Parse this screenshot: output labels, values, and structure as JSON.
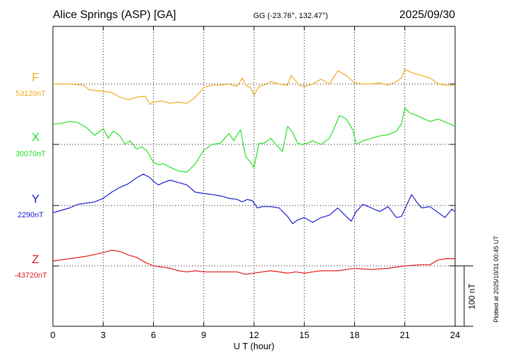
{
  "header": {
    "station": "Alice Springs (ASP)  [GA]",
    "coords": "GG (-23.76°, 132.47°)",
    "date": "2025/09/30"
  },
  "footer": {
    "plotted": "Plotted at 2025/10/31 00:45 UT",
    "scale_label": "100 nT"
  },
  "chart_data": {
    "type": "line",
    "title": "Alice Springs (ASP)  [GA]",
    "xlabel": "U T (hour)",
    "ylabel": "",
    "xlim": [
      0,
      24
    ],
    "x_ticks": [
      "0",
      "3",
      "6",
      "9",
      "12",
      "15",
      "18",
      "21",
      "24"
    ],
    "grid": true,
    "scale_bar_nT": 100,
    "series": [
      {
        "name": "F",
        "baseline_label": "53120nT",
        "color": "#f0a818",
        "x": [
          0,
          1,
          1.8,
          2.2,
          3,
          3.5,
          4,
          4.5,
          5,
          5.5,
          5.8,
          6,
          6.5,
          7,
          7.5,
          8,
          8.5,
          9,
          9.5,
          10,
          10.5,
          11,
          11.3,
          11.5,
          11.8,
          12,
          12.3,
          12.6,
          13,
          13.5,
          14,
          14.2,
          14.4,
          14.7,
          15,
          15.5,
          16,
          16.5,
          17,
          17.5,
          18,
          18.5,
          19,
          19.5,
          20,
          20.5,
          20.8,
          21,
          21.5,
          22,
          22.5,
          23,
          23.5,
          24
        ],
        "values": [
          0,
          0,
          -2,
          -10,
          -12,
          -14,
          -22,
          -26,
          -22,
          -20,
          -34,
          -30,
          -28,
          -32,
          -30,
          -32,
          -22,
          -6,
          -2,
          -2,
          0,
          -4,
          10,
          -2,
          -6,
          -18,
          -4,
          -2,
          4,
          0,
          -2,
          14,
          8,
          -2,
          -4,
          0,
          8,
          0,
          22,
          14,
          2,
          0,
          0,
          2,
          -2,
          4,
          10,
          24,
          18,
          14,
          10,
          0,
          -2,
          -2
        ]
      },
      {
        "name": "X",
        "baseline_label": "30070nT",
        "color": "#22e022",
        "x": [
          0,
          0.5,
          1,
          1.5,
          2,
          2.5,
          3,
          3.3,
          3.6,
          4,
          4.3,
          4.6,
          5,
          5.3,
          5.6,
          6,
          6.3,
          6.6,
          7,
          7.5,
          8,
          8.5,
          9,
          9.5,
          10,
          10.5,
          10.8,
          11,
          11.2,
          11.5,
          11.8,
          12,
          12.3,
          12.6,
          13,
          13.3,
          13.7,
          14,
          14.3,
          14.6,
          14.9,
          15.2,
          15.5,
          16,
          16.5,
          16.8,
          17.1,
          17.5,
          17.9,
          18.1,
          18.5,
          19,
          19.5,
          20,
          20.5,
          20.8,
          21,
          21.3,
          21.7,
          22,
          22.5,
          23,
          23.5,
          24
        ],
        "values": [
          33,
          35,
          38,
          36,
          28,
          15,
          26,
          10,
          22,
          14,
          0,
          6,
          -8,
          -4,
          -10,
          -30,
          -34,
          -32,
          -38,
          -44,
          -46,
          -32,
          -10,
          0,
          2,
          18,
          6,
          16,
          24,
          -20,
          -30,
          -38,
          2,
          2,
          10,
          0,
          -12,
          30,
          20,
          2,
          0,
          2,
          6,
          0,
          10,
          28,
          48,
          42,
          24,
          0,
          6,
          10,
          14,
          16,
          22,
          34,
          60,
          52,
          48,
          44,
          38,
          42,
          36,
          30
        ]
      },
      {
        "name": "Y",
        "baseline_label": "2290nT",
        "color": "#1818d0",
        "x": [
          0,
          0.5,
          1,
          1.5,
          2,
          2.5,
          3,
          3.5,
          4,
          4.5,
          5,
          5.4,
          5.8,
          6,
          6.3,
          6.6,
          7,
          7.5,
          8,
          8.5,
          9,
          9.5,
          10,
          10.5,
          11,
          11.3,
          11.6,
          11.9,
          12.2,
          12.5,
          13,
          13.5,
          14,
          14.3,
          14.6,
          15,
          15.5,
          16,
          16.5,
          17,
          17.5,
          17.8,
          18.1,
          18.5,
          19,
          19.5,
          20,
          20.5,
          20.8,
          21.1,
          21.4,
          21.7,
          22,
          22.5,
          23,
          23.4,
          23.8,
          24
        ],
        "values": [
          -12,
          -8,
          -4,
          2,
          4,
          6,
          12,
          22,
          30,
          36,
          46,
          52,
          46,
          40,
          34,
          38,
          42,
          38,
          34,
          22,
          20,
          18,
          16,
          12,
          10,
          6,
          10,
          8,
          -4,
          -2,
          -2,
          -4,
          -18,
          -30,
          -24,
          -20,
          -28,
          -20,
          -16,
          -4,
          -18,
          -26,
          -10,
          2,
          -4,
          -10,
          -2,
          -20,
          -18,
          0,
          18,
          6,
          -4,
          -2,
          -12,
          -20,
          -6,
          -10
        ]
      },
      {
        "name": "Z",
        "baseline_label": "-43720nT",
        "color": "#e01818",
        "x": [
          0,
          1,
          2,
          3,
          3.5,
          4,
          4.5,
          5,
          5.5,
          6,
          6.5,
          7,
          7.5,
          8,
          8.5,
          9,
          10,
          11,
          11.5,
          12,
          12.5,
          13,
          14,
          14.5,
          15,
          15.5,
          16,
          17,
          18,
          19,
          20,
          21,
          22,
          22.5,
          23,
          23.5,
          24
        ],
        "values": [
          8,
          12,
          16,
          22,
          26,
          24,
          18,
          14,
          6,
          0,
          -2,
          -4,
          -8,
          -10,
          -8,
          -10,
          -10,
          -10,
          -14,
          -12,
          -10,
          -8,
          -12,
          -10,
          -12,
          -10,
          -8,
          -8,
          -4,
          -6,
          -4,
          0,
          2,
          2,
          10,
          12,
          12
        ]
      }
    ]
  }
}
